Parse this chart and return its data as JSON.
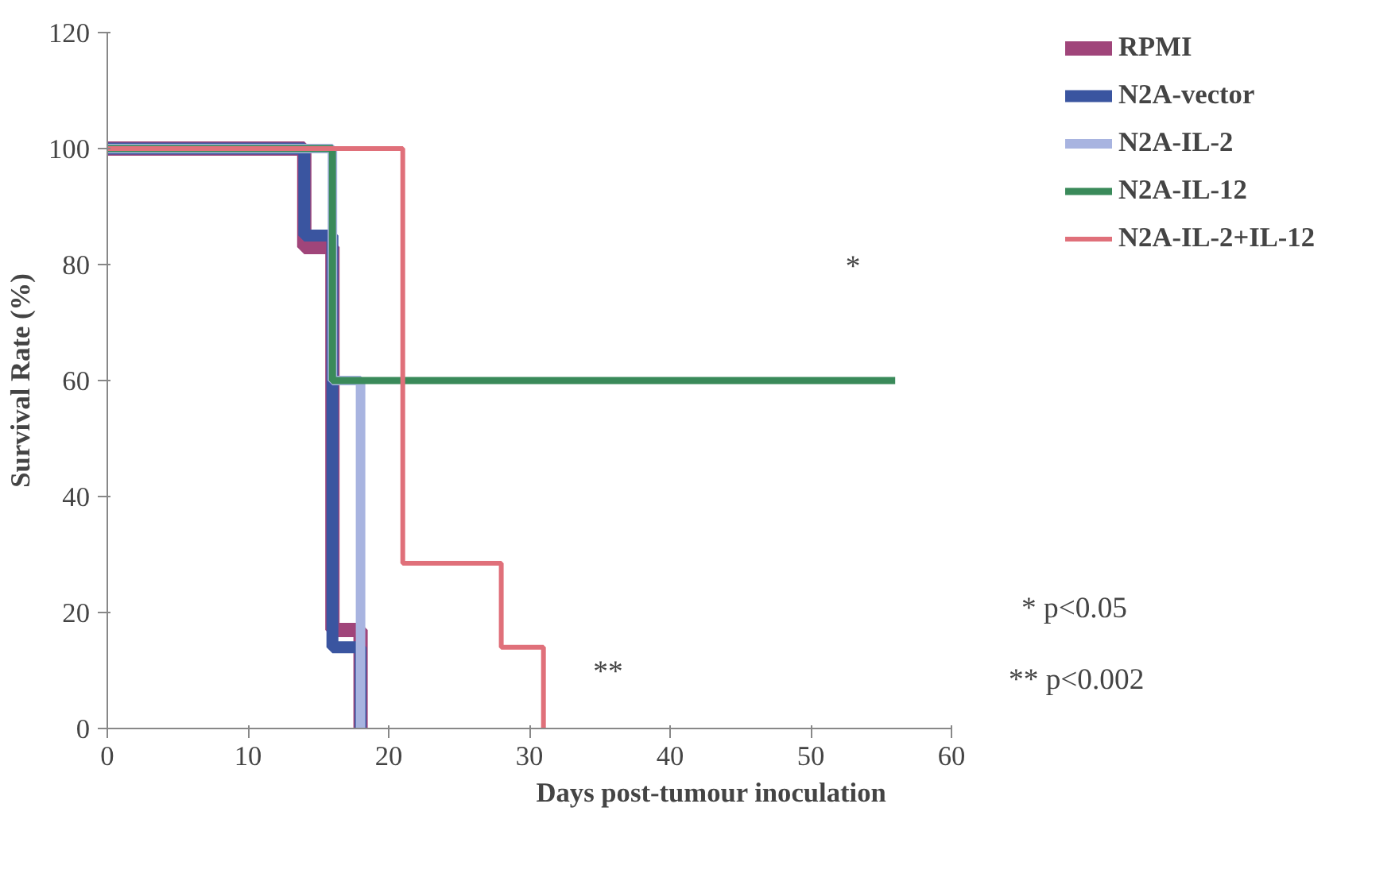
{
  "chart_data": {
    "type": "step",
    "xlabel": "Days post-tumour inoculation",
    "ylabel": "Survival Rate (%)",
    "xlim": [
      0,
      60
    ],
    "xticks": [
      0,
      10,
      20,
      30,
      40,
      50,
      60
    ],
    "ylim": [
      0,
      120
    ],
    "yticks": [
      0,
      20,
      40,
      60,
      80,
      100,
      120
    ],
    "grid": false,
    "legend": "right",
    "line_style": "solid",
    "marker": "none",
    "series": [
      {
        "name": "RPMI",
        "color": "#a0457a",
        "x": [
          0,
          14,
          16,
          18
        ],
        "values": [
          100,
          83,
          17,
          0
        ]
      },
      {
        "name": "N2A-vector",
        "color": "#3a55a0",
        "x": [
          0,
          14,
          16,
          18
        ],
        "values": [
          100,
          85,
          14,
          0
        ]
      },
      {
        "name": "N2A-IL-2",
        "color": "#a8b4e0",
        "x": [
          0,
          16,
          18
        ],
        "values": [
          100,
          60,
          0
        ]
      },
      {
        "name": "N2A-IL-12",
        "color": "#3a8a5a",
        "x": [
          0,
          16,
          56
        ],
        "values": [
          100,
          60,
          60
        ]
      },
      {
        "name": "N2A-IL-2+IL-12",
        "color": "#e0707a",
        "x": [
          0,
          21,
          28,
          31
        ],
        "values": [
          100,
          28.5,
          14,
          0
        ]
      }
    ],
    "annotations": [
      "*",
      "**",
      "* p<0.05",
      "** p<0.002"
    ]
  }
}
